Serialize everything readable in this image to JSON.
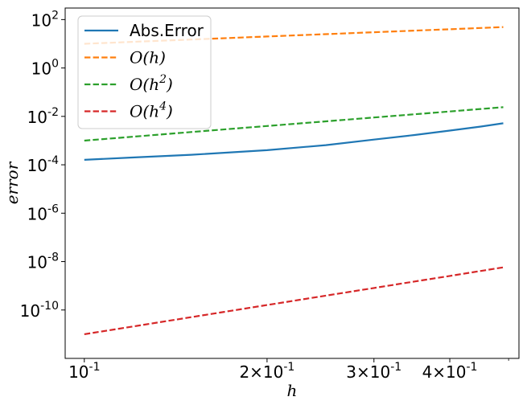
{
  "chart_data": {
    "type": "line",
    "title": "",
    "xlabel": "h",
    "ylabel": "error",
    "x_scale": "log",
    "y_scale": "log",
    "xlim": [
      0.093,
      0.52
    ],
    "ylim": [
      1e-12,
      300
    ],
    "grid": false,
    "legend_position": "top-left",
    "x_ticks": [
      {
        "value": 0.1,
        "mantissa": "",
        "base": "10",
        "exp": "-1"
      },
      {
        "value": 0.2,
        "mantissa": "2×",
        "base": "10",
        "exp": "-1"
      },
      {
        "value": 0.3,
        "mantissa": "3×",
        "base": "10",
        "exp": "-1"
      },
      {
        "value": 0.4,
        "mantissa": "4×",
        "base": "10",
        "exp": "-1"
      }
    ],
    "x_minor_ticks": [
      0.5
    ],
    "y_ticks": [
      {
        "value": 1e-10,
        "base": "10",
        "exp": "-10"
      },
      {
        "value": 1e-08,
        "base": "10",
        "exp": "-8"
      },
      {
        "value": 1e-06,
        "base": "10",
        "exp": "-6"
      },
      {
        "value": 0.0001,
        "base": "10",
        "exp": "-4"
      },
      {
        "value": 0.01,
        "base": "10",
        "exp": "-2"
      },
      {
        "value": 1,
        "base": "10",
        "exp": "0"
      },
      {
        "value": 100,
        "base": "10",
        "exp": "2"
      }
    ],
    "x": [
      0.1,
      0.12,
      0.15,
      0.2,
      0.25,
      0.3,
      0.35,
      0.4,
      0.45,
      0.49
    ],
    "series": [
      {
        "name": "Abs.Error",
        "label_base": "Abs.Error",
        "label_exp": "",
        "color": "#1f77b4",
        "dash": "solid",
        "values": [
          0.00016,
          0.0002,
          0.00026,
          0.0004,
          0.00065,
          0.0011,
          0.0017,
          0.0026,
          0.0038,
          0.0052
        ]
      },
      {
        "name": "O(h)",
        "label_base": "O(h",
        "label_exp": "",
        "color": "#ff7f0e",
        "dash": "dashed",
        "values": [
          10,
          12,
          15,
          20,
          25,
          30,
          35,
          40,
          45,
          49
        ]
      },
      {
        "name": "O(h^2)",
        "label_base": "O(h",
        "label_exp": "2",
        "color": "#2ca02c",
        "dash": "dashed",
        "values": [
          0.001,
          0.00144,
          0.00225,
          0.004,
          0.00625,
          0.009,
          0.01225,
          0.016,
          0.02025,
          0.02401
        ]
      },
      {
        "name": "O(h^4)",
        "label_base": "O(h",
        "label_exp": "4",
        "color": "#d62728",
        "dash": "dashed",
        "values": [
          1e-11,
          2.07e-11,
          5.06e-11,
          1.6e-10,
          3.91e-10,
          8.1e-10,
          1.5e-09,
          2.56e-09,
          4.1e-09,
          5.76e-09
        ]
      }
    ]
  }
}
